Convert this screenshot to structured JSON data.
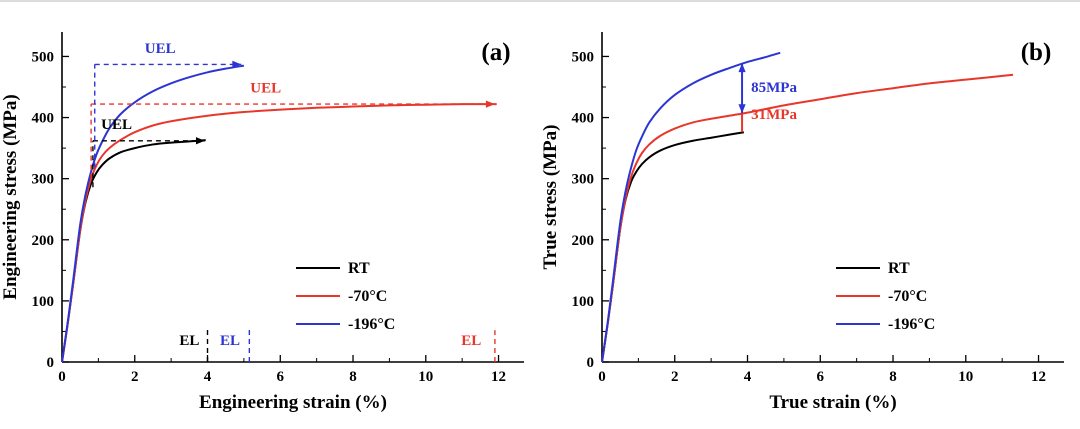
{
  "chart_data": [
    {
      "type": "line",
      "panel_label": "(a)",
      "xlabel": "Engineering strain (%)",
      "ylabel": "Engineering stress (MPa)",
      "xlim": [
        0,
        12.7
      ],
      "ylim": [
        0,
        540
      ],
      "x_ticks": [
        0,
        2,
        4,
        6,
        8,
        10,
        12
      ],
      "y_ticks": [
        0,
        100,
        200,
        300,
        400,
        500
      ],
      "grid": false,
      "legend_position": "lower right",
      "legend": [
        {
          "label": "RT",
          "color": "#000000"
        },
        {
          "label": "-70°C",
          "color": "#e8362b"
        },
        {
          "label": "-196°C",
          "color": "#2c35d4"
        }
      ],
      "series": [
        {
          "name": "RT",
          "color": "#000000",
          "x": [
            0,
            0.15,
            0.3,
            0.5,
            0.65,
            0.8,
            0.95,
            1.1,
            1.3,
            1.6,
            2.0,
            2.5,
            3.0,
            3.5,
            3.95
          ],
          "y": [
            0,
            60,
            125,
            215,
            262,
            292,
            310,
            322,
            333,
            343,
            350,
            356,
            359,
            361,
            363
          ]
        },
        {
          "name": "-70°C",
          "color": "#e8362b",
          "x": [
            0,
            0.15,
            0.3,
            0.5,
            0.65,
            0.8,
            0.95,
            1.1,
            1.3,
            1.6,
            2.0,
            2.5,
            3.0,
            4.0,
            5.0,
            6.0,
            7.0,
            8.0,
            9.0,
            10.0,
            11.0,
            11.95
          ],
          "y": [
            0,
            60,
            125,
            215,
            265,
            300,
            322,
            337,
            350,
            363,
            376,
            387,
            394,
            403,
            409,
            413,
            416,
            418,
            420,
            421,
            422,
            422
          ]
        },
        {
          "name": "-196°C",
          "color": "#2c35d4",
          "x": [
            0,
            0.15,
            0.3,
            0.5,
            0.65,
            0.8,
            0.95,
            1.1,
            1.3,
            1.6,
            2.0,
            2.5,
            3.0,
            3.5,
            4.0,
            4.5,
            5.0
          ],
          "y": [
            0,
            62,
            130,
            225,
            275,
            312,
            340,
            360,
            382,
            405,
            425,
            443,
            456,
            466,
            474,
            480,
            485
          ]
        }
      ],
      "annotations": [
        {
          "kind": "line",
          "style": "dashed",
          "color": "#000000",
          "x1": 0.85,
          "y1": 286,
          "x2": 0.85,
          "y2": 362
        },
        {
          "kind": "line",
          "style": "dashed",
          "color": "#000000",
          "x1": 0.85,
          "y1": 362,
          "x2": 3.93,
          "y2": 362,
          "arrow": "end"
        },
        {
          "kind": "text",
          "text": "UEL",
          "color": "#000000",
          "x": 1.5,
          "y": 381
        },
        {
          "kind": "line",
          "style": "dashed",
          "color": "#e8362b",
          "x1": 0.8,
          "y1": 300,
          "x2": 0.8,
          "y2": 422
        },
        {
          "kind": "line",
          "style": "dashed",
          "color": "#e8362b",
          "x1": 0.8,
          "y1": 422,
          "x2": 11.9,
          "y2": 422,
          "arrow": "end"
        },
        {
          "kind": "text",
          "text": "UEL",
          "color": "#e8362b",
          "x": 5.6,
          "y": 441
        },
        {
          "kind": "line",
          "style": "dashed",
          "color": "#2c35d4",
          "x1": 0.9,
          "y1": 318,
          "x2": 0.9,
          "y2": 487
        },
        {
          "kind": "line",
          "style": "dashed",
          "color": "#2c35d4",
          "x1": 0.9,
          "y1": 487,
          "x2": 4.93,
          "y2": 487,
          "arrow": "end"
        },
        {
          "kind": "text",
          "text": "UEL",
          "color": "#2c35d4",
          "x": 2.7,
          "y": 506
        },
        {
          "kind": "line",
          "style": "dashed",
          "color": "#000000",
          "x1": 4.0,
          "y1": 0,
          "x2": 4.0,
          "y2": 58
        },
        {
          "kind": "text",
          "text": "EL",
          "color": "#000000",
          "x": 3.5,
          "y": 28
        },
        {
          "kind": "line",
          "style": "dashed",
          "color": "#2c35d4",
          "x1": 5.15,
          "y1": 0,
          "x2": 5.15,
          "y2": 58
        },
        {
          "kind": "text",
          "text": "EL",
          "color": "#2c35d4",
          "x": 4.62,
          "y": 28
        },
        {
          "kind": "line",
          "style": "dashed",
          "color": "#e8362b",
          "x1": 11.9,
          "y1": 0,
          "x2": 11.9,
          "y2": 52
        },
        {
          "kind": "text",
          "text": "EL",
          "color": "#e8362b",
          "x": 11.25,
          "y": 28
        }
      ]
    },
    {
      "type": "line",
      "panel_label": "(b)",
      "xlabel": "True strain (%)",
      "ylabel": "True stress (MPa)",
      "xlim": [
        0,
        12.7
      ],
      "ylim": [
        0,
        540
      ],
      "x_ticks": [
        0,
        2,
        4,
        6,
        8,
        10,
        12
      ],
      "y_ticks": [
        0,
        100,
        200,
        300,
        400,
        500
      ],
      "grid": false,
      "legend_position": "lower right",
      "legend": [
        {
          "label": "RT",
          "color": "#000000"
        },
        {
          "label": "-70°C",
          "color": "#e8362b"
        },
        {
          "label": "-196°C",
          "color": "#2c35d4"
        }
      ],
      "series": [
        {
          "name": "RT",
          "color": "#000000",
          "x": [
            0,
            0.15,
            0.3,
            0.5,
            0.65,
            0.8,
            0.95,
            1.1,
            1.3,
            1.6,
            2.0,
            2.5,
            3.0,
            3.5,
            3.9
          ],
          "y": [
            0,
            60,
            126,
            218,
            266,
            295,
            312,
            324,
            335,
            346,
            355,
            362,
            367,
            372,
            376
          ]
        },
        {
          "name": "-70°C",
          "color": "#e8362b",
          "x": [
            0,
            0.15,
            0.3,
            0.5,
            0.65,
            0.8,
            0.95,
            1.1,
            1.3,
            1.6,
            2.0,
            2.5,
            3.0,
            4.0,
            5.0,
            6.0,
            7.0,
            8.0,
            9.0,
            10.0,
            11.3
          ],
          "y": [
            0,
            60,
            126,
            218,
            268,
            303,
            326,
            342,
            356,
            370,
            382,
            392,
            398,
            408,
            420,
            430,
            440,
            448,
            456,
            462,
            470
          ]
        },
        {
          "name": "-196°C",
          "color": "#2c35d4",
          "x": [
            0,
            0.15,
            0.3,
            0.5,
            0.65,
            0.8,
            0.95,
            1.1,
            1.3,
            1.6,
            2.0,
            2.5,
            3.0,
            3.5,
            4.0,
            4.5,
            4.9
          ],
          "y": [
            0,
            62,
            132,
            228,
            280,
            318,
            348,
            369,
            392,
            415,
            437,
            456,
            470,
            481,
            491,
            499,
            506
          ]
        }
      ],
      "annotations": [
        {
          "kind": "line",
          "style": "solid",
          "color": "#2c35d4",
          "x1": 3.85,
          "y1": 407,
          "x2": 3.85,
          "y2": 489,
          "arrow": "both"
        },
        {
          "kind": "text",
          "text": "85MPa",
          "color": "#2c35d4",
          "x": 4.1,
          "y": 442,
          "anchor": "start"
        },
        {
          "kind": "line",
          "style": "solid",
          "color": "#e8362b",
          "x1": 3.85,
          "y1": 376,
          "x2": 3.85,
          "y2": 407
        },
        {
          "kind": "text",
          "text": "31MPa",
          "color": "#e8362b",
          "x": 4.1,
          "y": 398,
          "anchor": "start"
        }
      ]
    }
  ]
}
